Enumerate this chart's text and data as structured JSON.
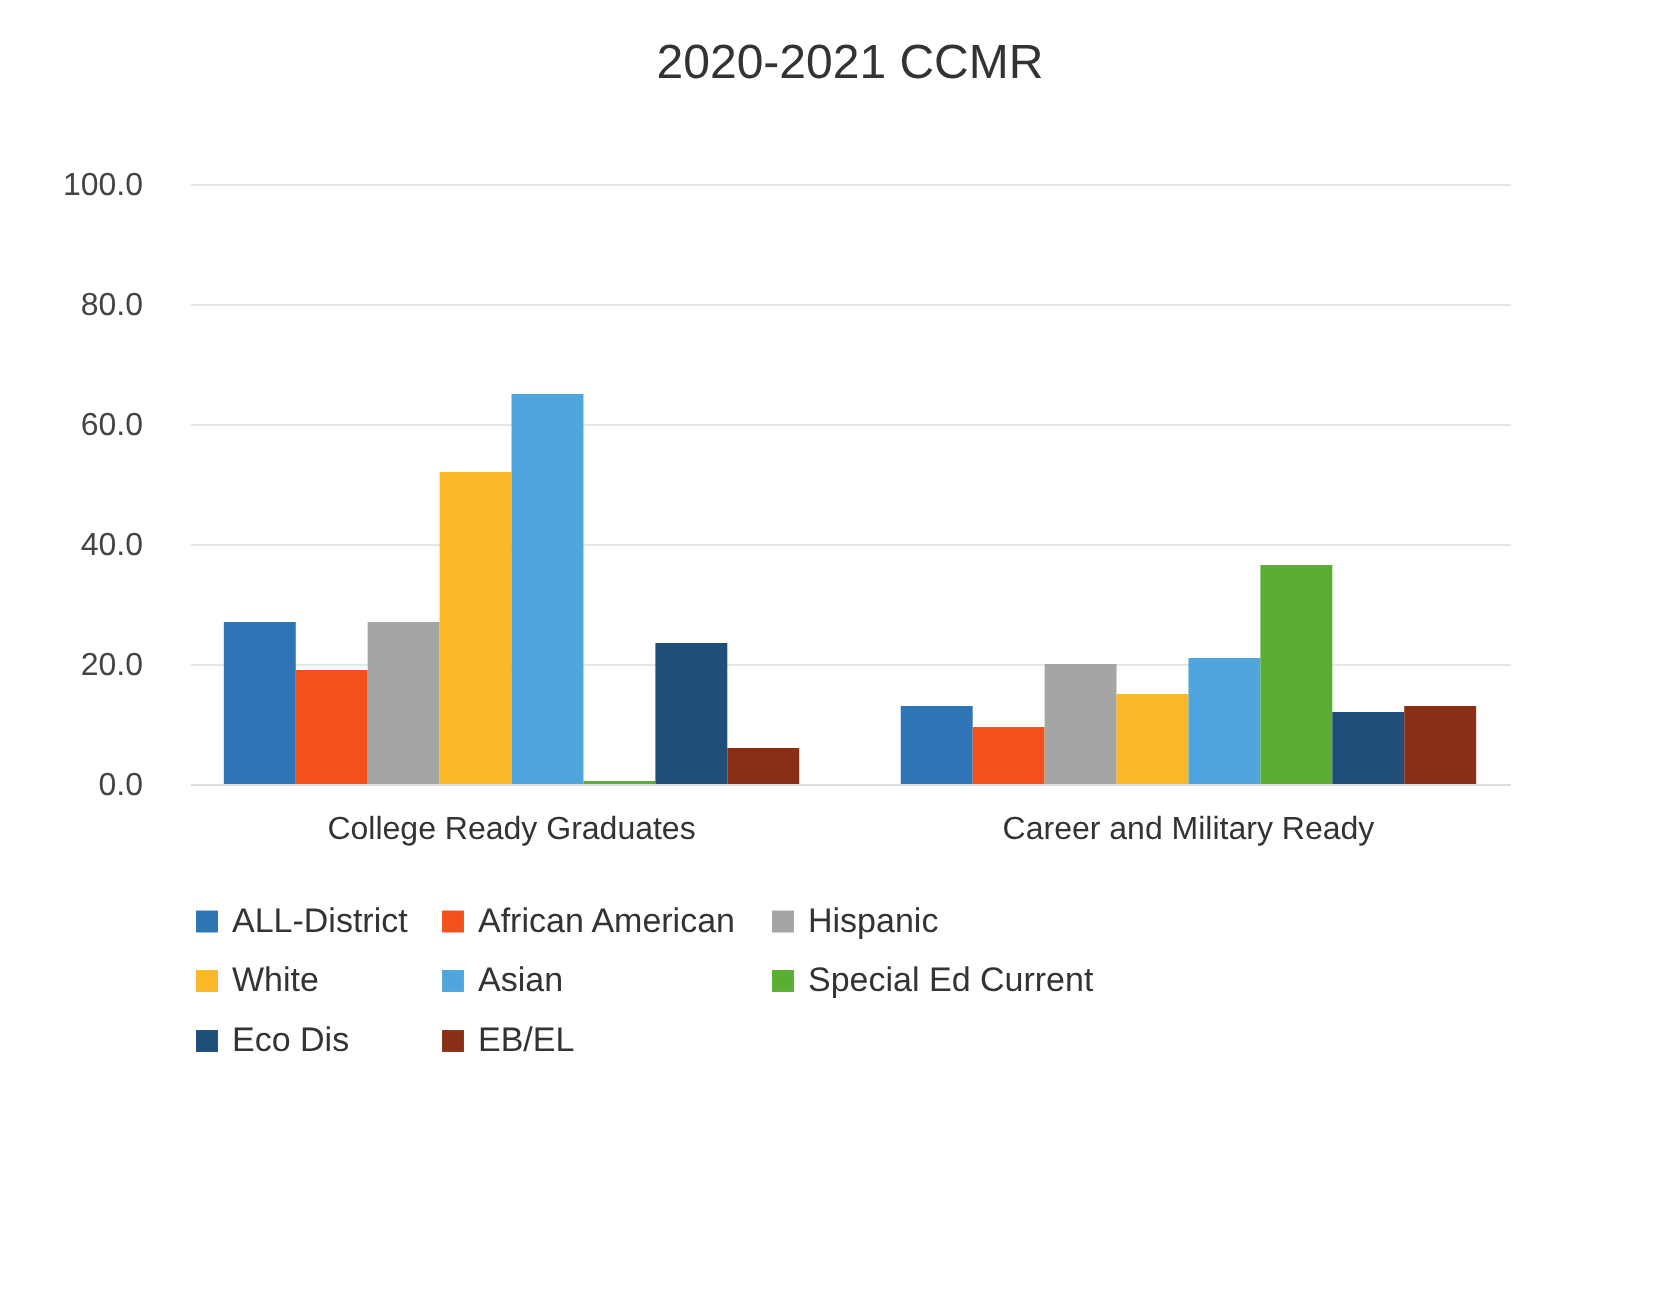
{
  "chart_data": {
    "type": "bar",
    "title": "2020-2021 CCMR",
    "categories": [
      "College Ready Graduates",
      "Career and Military Ready"
    ],
    "series": [
      {
        "name": "ALL-District",
        "color": "#2e75b6",
        "values": [
          27,
          13
        ]
      },
      {
        "name": "African American",
        "color": "#f4511e",
        "values": [
          19,
          9.5
        ]
      },
      {
        "name": "Hispanic",
        "color": "#a5a5a5",
        "values": [
          27,
          20
        ]
      },
      {
        "name": "White",
        "color": "#fdb827",
        "values": [
          52,
          15
        ]
      },
      {
        "name": "Asian",
        "color": "#4ea6dc",
        "values": [
          65,
          21
        ]
      },
      {
        "name": "Special Ed Current",
        "color": "#5aae32",
        "values": [
          0.5,
          36.5
        ]
      },
      {
        "name": "Eco Dis",
        "color": "#1f4e79",
        "values": [
          23.5,
          12
        ]
      },
      {
        "name": "EB/EL",
        "color": "#8b2e16",
        "values": [
          6,
          13
        ]
      }
    ],
    "ylim": [
      0,
      100
    ],
    "yticks": [
      {
        "value": 0,
        "label": "0.0"
      },
      {
        "value": 20,
        "label": "20.0"
      },
      {
        "value": 40,
        "label": "40.0"
      },
      {
        "value": 60,
        "label": "60.0"
      },
      {
        "value": 80,
        "label": "80.0"
      },
      {
        "value": 100,
        "label": "100.0"
      }
    ],
    "grid": "y",
    "legend": "bottom"
  }
}
